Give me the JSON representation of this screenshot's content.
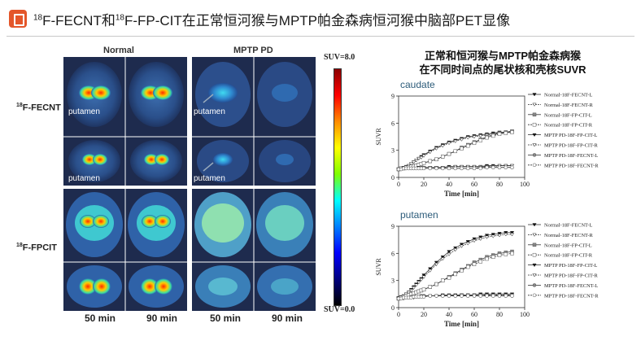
{
  "header": {
    "title_pre": "18",
    "title_a": "F-FECNT和",
    "title_sup": "18",
    "title_b": "F-FP-CIT在正常恒河猴与MPTP帕金森病恒河猴中脑部PET显像"
  },
  "images": {
    "col_normal": "Normal",
    "col_mptp": "MPTP PD",
    "row1_label_sup": "18",
    "row1_label": "F-FECNT",
    "row2_label_sup": "18",
    "row2_label": "F-FPCIT",
    "putamen": "putamen",
    "time1": "50 min",
    "time2": "90 min",
    "time3": "50 min",
    "time4": "90 min",
    "suv_max": "SUV=8.0",
    "suv_min": "SUV=0.0"
  },
  "chart_title_line1": "正常和恒河猴与MPTP帕金森病猴",
  "chart_title_line2": "在不同时间点的尾状核和壳核SUVR",
  "chart_data": [
    {
      "type": "line",
      "title": "caudate",
      "xlabel": "Time [min]",
      "ylabel": "SUVR",
      "xlim": [
        0,
        100
      ],
      "ylim": [
        0,
        9
      ],
      "xticks": [
        0,
        20,
        40,
        60,
        80,
        100
      ],
      "yticks": [
        0,
        3,
        6,
        9
      ],
      "x": [
        0,
        2,
        4,
        6,
        8,
        10,
        12,
        14,
        16,
        18,
        20,
        25,
        30,
        35,
        40,
        45,
        50,
        55,
        60,
        65,
        70,
        75,
        80,
        85,
        90
      ],
      "series": [
        {
          "name": "Normal-18F-FECNT-L",
          "values": [
            0.9,
            1.0,
            1.1,
            1.2,
            1.3,
            1.5,
            1.7,
            1.9,
            2.1,
            2.3,
            2.5,
            2.9,
            3.3,
            3.6,
            3.9,
            4.1,
            4.3,
            4.5,
            4.6,
            4.7,
            4.8,
            4.9,
            5.0,
            5.0,
            5.1
          ]
        },
        {
          "name": "Normal-18F-FECNT-R",
          "values": [
            0.9,
            1.0,
            1.1,
            1.2,
            1.3,
            1.5,
            1.7,
            1.9,
            2.1,
            2.2,
            2.4,
            2.8,
            3.2,
            3.5,
            3.8,
            4.0,
            4.2,
            4.4,
            4.5,
            4.6,
            4.7,
            4.8,
            4.9,
            5.0,
            5.0
          ]
        },
        {
          "name": "Normal-18F-FP-CIT-L",
          "values": [
            0.9,
            1.0,
            1.0,
            1.1,
            1.1,
            1.2,
            1.2,
            1.3,
            1.4,
            1.5,
            1.6,
            1.8,
            2.0,
            2.3,
            2.6,
            2.9,
            3.3,
            3.6,
            3.9,
            4.2,
            4.5,
            4.7,
            4.9,
            5.0,
            5.1
          ]
        },
        {
          "name": "Normal-18F-FP-CIT-R",
          "values": [
            0.9,
            1.0,
            1.0,
            1.1,
            1.1,
            1.2,
            1.2,
            1.3,
            1.4,
            1.5,
            1.6,
            1.8,
            2.0,
            2.3,
            2.6,
            2.9,
            3.2,
            3.5,
            3.8,
            4.1,
            4.4,
            4.6,
            4.8,
            4.9,
            5.0
          ]
        },
        {
          "name": "MPTP PD-18F-FP-CIT-L",
          "values": [
            0.9,
            0.9,
            1.0,
            1.0,
            1.0,
            1.0,
            1.0,
            1.0,
            1.1,
            1.1,
            1.1,
            1.1,
            1.1,
            1.1,
            1.2,
            1.2,
            1.2,
            1.2,
            1.2,
            1.2,
            1.3,
            1.3,
            1.3,
            1.3,
            1.3
          ]
        },
        {
          "name": "MPTP PD-18F-FP-CIT-R",
          "values": [
            0.9,
            0.9,
            1.0,
            1.0,
            1.0,
            1.0,
            1.0,
            1.0,
            1.0,
            1.1,
            1.1,
            1.1,
            1.1,
            1.1,
            1.1,
            1.2,
            1.2,
            1.2,
            1.2,
            1.2,
            1.2,
            1.2,
            1.3,
            1.3,
            1.3
          ]
        },
        {
          "name": "MPTP PD-18F-FECNT-L",
          "values": [
            0.9,
            0.9,
            1.0,
            1.0,
            1.0,
            1.0,
            1.0,
            1.0,
            1.0,
            1.0,
            1.0,
            1.0,
            1.0,
            1.0,
            1.0,
            1.0,
            1.0,
            1.0,
            1.0,
            1.1,
            1.1,
            1.1,
            1.1,
            1.1,
            1.1
          ]
        },
        {
          "name": "MPTP PD-18F-FECNT-R",
          "values": [
            0.9,
            0.9,
            1.0,
            1.0,
            1.0,
            1.0,
            1.0,
            1.0,
            1.0,
            1.0,
            1.0,
            1.0,
            1.0,
            1.0,
            1.0,
            1.0,
            1.0,
            1.0,
            1.0,
            1.0,
            1.1,
            1.1,
            1.1,
            1.1,
            1.1
          ]
        }
      ]
    },
    {
      "type": "line",
      "title": "putamen",
      "xlabel": "Time [min]",
      "ylabel": "SUVR",
      "xlim": [
        0,
        100
      ],
      "ylim": [
        0,
        9
      ],
      "xticks": [
        0,
        20,
        40,
        60,
        80,
        100
      ],
      "yticks": [
        0,
        3,
        6,
        9
      ],
      "x": [
        0,
        2,
        4,
        6,
        8,
        10,
        12,
        14,
        16,
        18,
        20,
        25,
        30,
        35,
        40,
        45,
        50,
        55,
        60,
        65,
        70,
        75,
        80,
        85,
        90
      ],
      "series": [
        {
          "name": "Normal-18F-FECNT-L",
          "values": [
            1.1,
            1.2,
            1.3,
            1.5,
            1.7,
            2.0,
            2.3,
            2.6,
            2.9,
            3.2,
            3.6,
            4.3,
            5.0,
            5.6,
            6.2,
            6.6,
            7.0,
            7.3,
            7.6,
            7.8,
            8.0,
            8.1,
            8.2,
            8.3,
            8.3
          ]
        },
        {
          "name": "Normal-18F-FECNT-R",
          "values": [
            1.1,
            1.2,
            1.3,
            1.5,
            1.7,
            1.9,
            2.2,
            2.5,
            2.8,
            3.1,
            3.4,
            4.1,
            4.8,
            5.4,
            5.9,
            6.4,
            6.8,
            7.1,
            7.4,
            7.6,
            7.8,
            7.9,
            8.0,
            8.1,
            8.1
          ]
        },
        {
          "name": "Normal-18F-FP-CIT-L",
          "values": [
            1.0,
            1.1,
            1.2,
            1.3,
            1.4,
            1.5,
            1.6,
            1.7,
            1.8,
            1.9,
            2.0,
            2.3,
            2.6,
            3.0,
            3.4,
            3.8,
            4.2,
            4.6,
            5.0,
            5.3,
            5.6,
            5.8,
            6.0,
            6.1,
            6.2
          ]
        },
        {
          "name": "Normal-18F-FP-CIT-R",
          "values": [
            1.0,
            1.1,
            1.2,
            1.3,
            1.4,
            1.5,
            1.6,
            1.7,
            1.8,
            1.9,
            2.0,
            2.3,
            2.6,
            3.0,
            3.3,
            3.7,
            4.1,
            4.5,
            4.8,
            5.1,
            5.4,
            5.6,
            5.8,
            5.9,
            6.0
          ]
        },
        {
          "name": "MPTP PD-18F-FP-CIT-L",
          "values": [
            1.0,
            1.0,
            1.0,
            1.1,
            1.1,
            1.1,
            1.2,
            1.2,
            1.2,
            1.3,
            1.3,
            1.3,
            1.3,
            1.4,
            1.4,
            1.4,
            1.4,
            1.4,
            1.4,
            1.5,
            1.5,
            1.5,
            1.5,
            1.5,
            1.5
          ]
        },
        {
          "name": "MPTP PD-18F-FP-CIT-R",
          "values": [
            1.0,
            1.0,
            1.0,
            1.1,
            1.1,
            1.1,
            1.1,
            1.2,
            1.2,
            1.2,
            1.2,
            1.3,
            1.3,
            1.3,
            1.3,
            1.3,
            1.4,
            1.4,
            1.4,
            1.4,
            1.4,
            1.4,
            1.4,
            1.4,
            1.4
          ]
        },
        {
          "name": "MPTP PD-18F-FECNT-L",
          "values": [
            1.0,
            1.0,
            1.1,
            1.1,
            1.1,
            1.2,
            1.2,
            1.2,
            1.2,
            1.3,
            1.3,
            1.3,
            1.3,
            1.3,
            1.3,
            1.3,
            1.3,
            1.3,
            1.3,
            1.3,
            1.3,
            1.3,
            1.3,
            1.3,
            1.3
          ]
        },
        {
          "name": "MPTP PD-18F-FECNT-R",
          "values": [
            1.0,
            1.0,
            1.1,
            1.1,
            1.1,
            1.1,
            1.2,
            1.2,
            1.2,
            1.2,
            1.2,
            1.3,
            1.3,
            1.3,
            1.3,
            1.3,
            1.3,
            1.3,
            1.3,
            1.3,
            1.3,
            1.3,
            1.3,
            1.3,
            1.3
          ]
        }
      ]
    }
  ]
}
